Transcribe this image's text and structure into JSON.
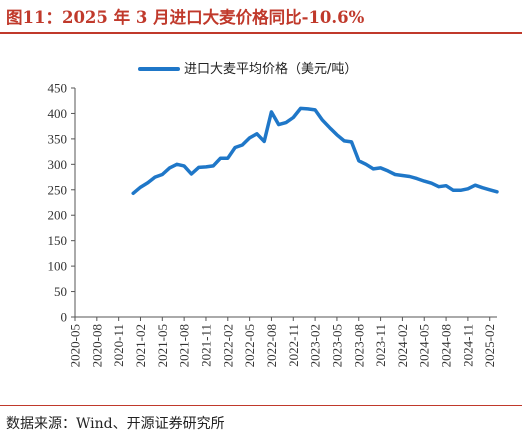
{
  "title": "图11：2025 年 3 月进口大麦价格同比-10.6%",
  "source": "数据来源：Wind、开源证券研究所",
  "colors": {
    "title": "#c0392b",
    "line": "#1f77c8",
    "axis": "#555555"
  },
  "chart_data": {
    "type": "line",
    "title": "",
    "xlabel": "",
    "ylabel": "",
    "ylim": [
      0,
      450
    ],
    "yticks": [
      0,
      50,
      100,
      150,
      200,
      250,
      300,
      350,
      400,
      450
    ],
    "xticks": [
      "2020-05",
      "2020-08",
      "2020-11",
      "2021-02",
      "2021-05",
      "2021-08",
      "2021-11",
      "2022-02",
      "2022-05",
      "2022-08",
      "2022-11",
      "2023-02",
      "2023-05",
      "2023-08",
      "2023-11",
      "2024-02",
      "2024-05",
      "2024-08",
      "2024-11",
      "2025-02"
    ],
    "grid": false,
    "legend": "top-center",
    "series": [
      {
        "name": "进口大麦平均价格（美元/吨）",
        "points": [
          [
            "2021-01",
            243
          ],
          [
            "2021-02",
            255
          ],
          [
            "2021-03",
            264
          ],
          [
            "2021-04",
            275
          ],
          [
            "2021-05",
            280
          ],
          [
            "2021-06",
            293
          ],
          [
            "2021-07",
            300
          ],
          [
            "2021-08",
            297
          ],
          [
            "2021-09",
            281
          ],
          [
            "2021-10",
            294
          ],
          [
            "2021-11",
            295
          ],
          [
            "2021-12",
            297
          ],
          [
            "2022-01",
            312
          ],
          [
            "2022-02",
            312
          ],
          [
            "2022-03",
            333
          ],
          [
            "2022-04",
            338
          ],
          [
            "2022-05",
            352
          ],
          [
            "2022-06",
            360
          ],
          [
            "2022-07",
            345
          ],
          [
            "2022-08",
            403
          ],
          [
            "2022-09",
            378
          ],
          [
            "2022-10",
            382
          ],
          [
            "2022-11",
            392
          ],
          [
            "2022-12",
            410
          ],
          [
            "2023-01",
            409
          ],
          [
            "2023-02",
            407
          ],
          [
            "2023-03",
            387
          ],
          [
            "2023-04",
            372
          ],
          [
            "2023-05",
            358
          ],
          [
            "2023-06",
            346
          ],
          [
            "2023-07",
            344
          ],
          [
            "2023-08",
            307
          ],
          [
            "2023-09",
            300
          ],
          [
            "2023-10",
            291
          ],
          [
            "2023-11",
            293
          ],
          [
            "2023-12",
            287
          ],
          [
            "2024-01",
            280
          ],
          [
            "2024-02",
            278
          ],
          [
            "2024-03",
            276
          ],
          [
            "2024-04",
            272
          ],
          [
            "2024-05",
            267
          ],
          [
            "2024-06",
            263
          ],
          [
            "2024-07",
            256
          ],
          [
            "2024-08",
            258
          ],
          [
            "2024-09",
            249
          ],
          [
            "2024-10",
            249
          ],
          [
            "2024-11",
            252
          ],
          [
            "2024-12",
            259
          ],
          [
            "2025-01",
            254
          ],
          [
            "2025-02",
            250
          ],
          [
            "2025-03",
            246
          ]
        ]
      }
    ]
  }
}
